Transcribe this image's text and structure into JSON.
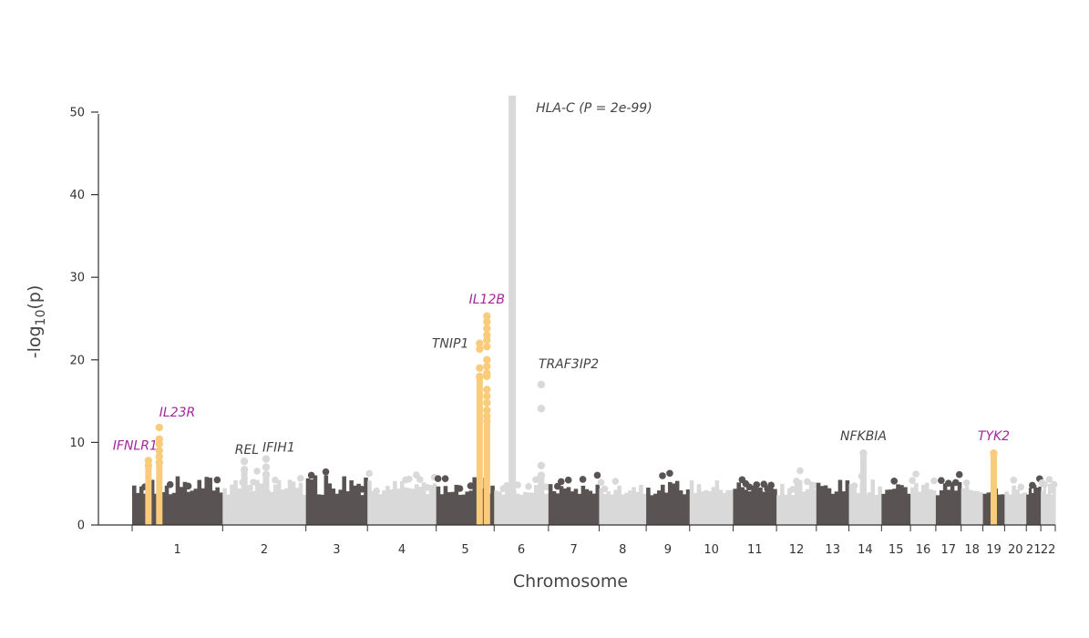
{
  "chart_data": {
    "type": "scatter",
    "title": "",
    "xlabel": "Chromosome",
    "ylabel_prefix": "-log",
    "ylabel_sub": "10",
    "ylabel_suffix": "(p)",
    "ylim": [
      0,
      52
    ],
    "yticks": [
      0,
      10,
      20,
      30,
      40,
      50
    ],
    "colors": {
      "dark": "#595353",
      "light": "#d9d9d9",
      "highlight": "#f9cc7b",
      "magenta_label": "#a3279c",
      "gray_label": "#444444"
    },
    "chromosomes": [
      {
        "label": "1",
        "start": 0.0,
        "end": 0.25,
        "color": "dark",
        "height": 6.0
      },
      {
        "label": "2",
        "start": 0.25,
        "end": 0.48,
        "color": "light",
        "height": 5.5
      },
      {
        "label": "3",
        "start": 0.48,
        "end": 0.65,
        "color": "dark",
        "height": 6.5
      },
      {
        "label": "4",
        "start": 0.65,
        "end": 0.84,
        "color": "light",
        "height": 5.5
      },
      {
        "label": "5",
        "start": 0.84,
        "end": 1.0,
        "color": "dark",
        "height": 6.0
      },
      {
        "label": "6",
        "start": 1.0,
        "end": 1.15,
        "color": "light",
        "height": 5.0
      },
      {
        "label": "7",
        "start": 1.15,
        "end": 1.29,
        "color": "dark",
        "height": 5.0
      },
      {
        "label": "8",
        "start": 1.29,
        "end": 1.42,
        "color": "light",
        "height": 5.5
      },
      {
        "label": "9",
        "start": 1.42,
        "end": 1.54,
        "color": "dark",
        "height": 5.5
      },
      {
        "label": "10",
        "start": 1.54,
        "end": 1.66,
        "color": "light",
        "height": 5.5
      },
      {
        "label": "11",
        "start": 1.66,
        "end": 1.78,
        "color": "dark",
        "height": 5.5
      },
      {
        "label": "12",
        "start": 1.78,
        "end": 1.89,
        "color": "light",
        "height": 5.5
      },
      {
        "label": "13",
        "start": 1.89,
        "end": 1.98,
        "color": "dark",
        "height": 5.5
      },
      {
        "label": "14",
        "start": 1.98,
        "end": 2.07,
        "color": "light",
        "height": 5.5
      },
      {
        "label": "15",
        "start": 2.07,
        "end": 2.15,
        "color": "dark",
        "height": 5.0
      },
      {
        "label": "16",
        "start": 2.15,
        "end": 2.22,
        "color": "light",
        "height": 5.5
      },
      {
        "label": "17",
        "start": 2.22,
        "end": 2.29,
        "color": "dark",
        "height": 5.5
      },
      {
        "label": "18",
        "start": 2.29,
        "end": 2.35,
        "color": "light",
        "height": 5.0
      },
      {
        "label": "19",
        "start": 2.35,
        "end": 2.41,
        "color": "dark",
        "height": 4.8
      },
      {
        "label": "20",
        "start": 2.41,
        "end": 2.47,
        "color": "light",
        "height": 5.0
      },
      {
        "label": "21",
        "start": 2.47,
        "end": 2.51,
        "color": "dark",
        "height": 5.0
      },
      {
        "label": "22",
        "start": 2.51,
        "end": 2.55,
        "color": "light",
        "height": 5.0
      }
    ],
    "peaks": [
      {
        "x": 0.045,
        "value": 7.8,
        "highlight": true,
        "label": "IFNLR1",
        "label_color": "magenta_label",
        "label_anchor": "end",
        "dots": [
          7.8,
          7.2
        ]
      },
      {
        "x": 0.075,
        "value": 11.8,
        "highlight": true,
        "label": "IL23R",
        "label_color": "magenta_label",
        "label_anchor": "start",
        "dots": [
          11.8,
          10.4,
          9.8,
          9.0,
          8.3,
          7.6
        ]
      },
      {
        "x": 0.31,
        "value": 7.7,
        "highlight": false,
        "label": "REL",
        "label_color": "gray_label",
        "label_anchor": "end",
        "dots": [
          7.7,
          6.7
        ]
      },
      {
        "x": 0.37,
        "value": 8.0,
        "highlight": false,
        "label": "IFIH1",
        "label_color": "gray_label",
        "label_anchor": "start",
        "dots": [
          8.0,
          7.0,
          6.1
        ]
      },
      {
        "x": 0.98,
        "value": 25.3,
        "highlight": true,
        "label": "IL12B",
        "label_color": "magenta_label",
        "label_anchor": "middle",
        "dots": [
          25.3,
          24.6,
          23.8,
          23.0,
          22.4,
          21.6,
          20.0,
          19.2,
          18.4,
          18.0,
          16.4,
          15.6,
          14.8,
          13.9,
          13.2,
          12.6
        ]
      },
      {
        "x": 0.96,
        "value": 22.0,
        "highlight": true,
        "label": "TNIP1",
        "label_color": "gray_label",
        "label_anchor": "end",
        "dots": [
          22.0,
          21.3,
          19.0,
          18.0
        ]
      },
      {
        "x": 1.05,
        "value": 52,
        "highlight": false,
        "label": "HLA-C (P = 2e-99)",
        "label_color": "gray_label",
        "label_anchor": "start",
        "dots": []
      },
      {
        "x": 1.13,
        "value": 17.0,
        "highlight": false,
        "label": "TRAF3IP2",
        "label_color": "gray_label",
        "label_anchor": "start",
        "dots": [
          17.0,
          14.1,
          7.2,
          6.0
        ]
      },
      {
        "x": 2.02,
        "value": 8.7,
        "highlight": false,
        "label": "NFKBIA",
        "label_color": "gray_label",
        "label_anchor": "middle",
        "dots": [
          8.7
        ]
      },
      {
        "x": 2.38,
        "value": 8.7,
        "highlight": true,
        "label": "TYK2",
        "label_color": "magenta_label",
        "label_anchor": "middle",
        "dots": [
          8.7
        ]
      }
    ]
  }
}
